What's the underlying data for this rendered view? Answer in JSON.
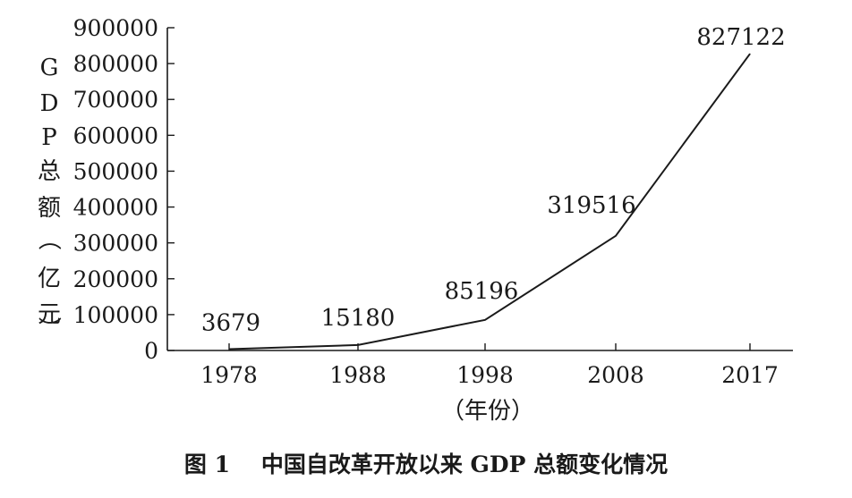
{
  "chart_data": {
    "type": "line",
    "title": "",
    "caption": "图 1    中国自改革开放以来 GDP 总额变化情况",
    "xlabel": "（年份）",
    "ylabel": "GDP总额（亿元）",
    "categories": [
      "1978",
      "1988",
      "1998",
      "2008",
      "2017"
    ],
    "series": [
      {
        "values": [
          3679,
          15180,
          85196,
          319516,
          827122
        ]
      }
    ],
    "data_labels": [
      "3679",
      "15180",
      "85196",
      "319516",
      "827122"
    ],
    "yticks": [
      "0",
      "100000",
      "200000",
      "300000",
      "400000",
      "500000",
      "600000",
      "700000",
      "800000",
      "900000"
    ],
    "ylim": [
      0,
      900000
    ],
    "grid": false,
    "legend": "none",
    "colors": {
      "line": "#1a1a1a",
      "axis": "#1a1a1a",
      "text": "#1a1a1a",
      "background": "#ffffff"
    }
  }
}
